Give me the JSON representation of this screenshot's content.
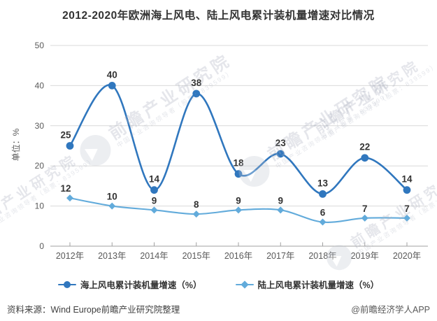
{
  "title": "2012-2020年欧洲海上风电、陆上风电累计装机量增速对比情况",
  "watermark": {
    "brand": "前瞻产业研究院",
    "sub": "中国产业咨询领导者（股票：839599）"
  },
  "chart_data": {
    "type": "line",
    "smooth": true,
    "categories": [
      "2012年",
      "2013年",
      "2014年",
      "2015年",
      "2016年",
      "2017年",
      "2018年",
      "2019年",
      "2020年"
    ],
    "series": [
      {
        "name": "海上风电累计装机量增速（%）",
        "values": [
          25,
          40,
          14,
          38,
          18,
          23,
          13,
          22,
          14
        ],
        "color": "#3077be",
        "marker": "circle"
      },
      {
        "name": "陆上风电累计装机量增速（%）",
        "values": [
          12,
          10,
          9,
          8,
          9,
          9,
          6,
          7,
          7
        ],
        "color": "#62abdb",
        "marker": "diamond"
      }
    ],
    "ylabel": "单位：%",
    "xlabel": "",
    "ylim": [
      0,
      50
    ],
    "yticks": [
      0,
      10,
      20,
      30,
      40,
      50
    ],
    "grid": true,
    "legend_position": "bottom",
    "colors": {
      "grid_line": "#d9d9d9",
      "axis_line": "#a0a0a0",
      "tick_label": "#595959",
      "data_label": "#333333",
      "title": "#333333"
    }
  },
  "footer": {
    "source": "资料来源：Wind Europe前瞻产业研究院整理",
    "credit": "@前瞻经济学人APP"
  }
}
